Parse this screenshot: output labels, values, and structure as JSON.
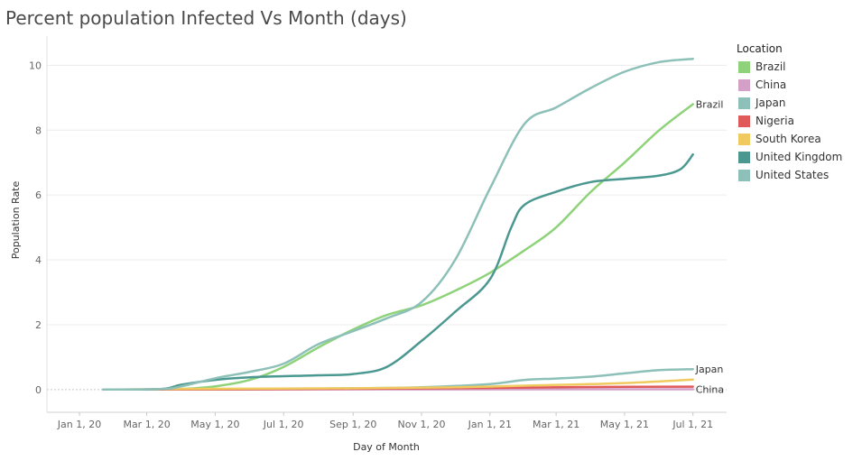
{
  "title": "Percent population Infected Vs Month (days)",
  "chart_data": {
    "type": "line",
    "title": "Percent population Infected Vs Month (days)",
    "xlabel": "Day of Month",
    "ylabel": "Population Rate",
    "x_tick_labels": [
      "Jan 1, 20",
      "Mar 1, 20",
      "May 1, 20",
      "Jul 1, 20",
      "Sep 1, 20",
      "Nov 1, 20",
      "Jan 1, 21",
      "Mar 1, 21",
      "May 1, 21",
      "Jul 1, 21"
    ],
    "x_ticks": [
      "2020-01-01",
      "2020-03-01",
      "2020-05-01",
      "2020-07-01",
      "2020-09-01",
      "2020-11-01",
      "2021-01-01",
      "2021-03-01",
      "2021-05-01",
      "2021-07-01"
    ],
    "xlim": [
      "2019-12-03",
      "2021-07-31"
    ],
    "y_ticks": [
      0,
      2,
      4,
      6,
      8,
      10
    ],
    "ylim": [
      -0.7,
      10.9
    ],
    "grid": "horizontal",
    "legend_position": "right",
    "legend_title": "Location",
    "series": [
      {
        "name": "Brazil",
        "color": "#8ed27a",
        "end_label": "Brazil",
        "points": [
          [
            "2020-02-26",
            0
          ],
          [
            "2020-04-01",
            0.02
          ],
          [
            "2020-05-01",
            0.1
          ],
          [
            "2020-06-01",
            0.3
          ],
          [
            "2020-07-01",
            0.7
          ],
          [
            "2020-08-01",
            1.3
          ],
          [
            "2020-09-01",
            1.85
          ],
          [
            "2020-10-01",
            2.3
          ],
          [
            "2020-11-01",
            2.6
          ],
          [
            "2020-12-01",
            3.05
          ],
          [
            "2021-01-01",
            3.6
          ],
          [
            "2021-02-01",
            4.3
          ],
          [
            "2021-03-01",
            5.0
          ],
          [
            "2021-04-01",
            6.1
          ],
          [
            "2021-05-01",
            7.0
          ],
          [
            "2021-06-01",
            8.0
          ],
          [
            "2021-07-01",
            8.8
          ]
        ]
      },
      {
        "name": "China",
        "color": "#d4a0c8",
        "end_label": "China",
        "points": [
          [
            "2020-01-22",
            0
          ],
          [
            "2021-07-01",
            0.01
          ]
        ]
      },
      {
        "name": "Japan",
        "color": "#8dc0b8",
        "end_label": "Japan",
        "points": [
          [
            "2020-01-22",
            0
          ],
          [
            "2020-06-01",
            0.01
          ],
          [
            "2020-09-01",
            0.04
          ],
          [
            "2020-11-01",
            0.07
          ],
          [
            "2021-01-01",
            0.17
          ],
          [
            "2021-02-01",
            0.3
          ],
          [
            "2021-03-01",
            0.34
          ],
          [
            "2021-04-01",
            0.4
          ],
          [
            "2021-05-01",
            0.5
          ],
          [
            "2021-06-01",
            0.6
          ],
          [
            "2021-07-01",
            0.63
          ]
        ]
      },
      {
        "name": "Nigeria",
        "color": "#e05a5a",
        "end_label": "",
        "points": [
          [
            "2020-02-28",
            0
          ],
          [
            "2020-06-01",
            0.01
          ],
          [
            "2020-10-01",
            0.03
          ],
          [
            "2021-01-01",
            0.05
          ],
          [
            "2021-04-01",
            0.08
          ],
          [
            "2021-07-01",
            0.09
          ]
        ]
      },
      {
        "name": "South Korea",
        "color": "#f0c95f",
        "end_label": "",
        "points": [
          [
            "2020-01-22",
            0
          ],
          [
            "2020-04-01",
            0.02
          ],
          [
            "2020-09-01",
            0.04
          ],
          [
            "2020-12-01",
            0.07
          ],
          [
            "2021-02-01",
            0.12
          ],
          [
            "2021-05-01",
            0.2
          ],
          [
            "2021-07-01",
            0.31
          ]
        ]
      },
      {
        "name": "United Kingdom",
        "color": "#4b9891",
        "end_label": "",
        "points": [
          [
            "2020-02-01",
            0
          ],
          [
            "2020-03-15",
            0.02
          ],
          [
            "2020-04-01",
            0.15
          ],
          [
            "2020-05-01",
            0.3
          ],
          [
            "2020-06-01",
            0.38
          ],
          [
            "2020-08-01",
            0.44
          ],
          [
            "2020-09-01",
            0.48
          ],
          [
            "2020-10-01",
            0.7
          ],
          [
            "2020-11-01",
            1.5
          ],
          [
            "2020-12-01",
            2.4
          ],
          [
            "2021-01-01",
            3.4
          ],
          [
            "2021-01-20",
            5.0
          ],
          [
            "2021-02-01",
            5.7
          ],
          [
            "2021-03-01",
            6.1
          ],
          [
            "2021-04-01",
            6.4
          ],
          [
            "2021-05-01",
            6.5
          ],
          [
            "2021-06-01",
            6.6
          ],
          [
            "2021-06-20",
            6.8
          ],
          [
            "2021-07-01",
            7.25
          ]
        ]
      },
      {
        "name": "United States",
        "color": "#8dc0b8",
        "end_label": "",
        "points": [
          [
            "2020-01-22",
            0
          ],
          [
            "2020-03-15",
            0.02
          ],
          [
            "2020-04-01",
            0.1
          ],
          [
            "2020-05-01",
            0.35
          ],
          [
            "2020-06-01",
            0.55
          ],
          [
            "2020-07-01",
            0.8
          ],
          [
            "2020-08-01",
            1.4
          ],
          [
            "2020-09-01",
            1.8
          ],
          [
            "2020-10-01",
            2.2
          ],
          [
            "2020-11-01",
            2.7
          ],
          [
            "2020-12-01",
            4.0
          ],
          [
            "2021-01-01",
            6.2
          ],
          [
            "2021-02-01",
            8.2
          ],
          [
            "2021-03-01",
            8.7
          ],
          [
            "2021-04-01",
            9.3
          ],
          [
            "2021-05-01",
            9.8
          ],
          [
            "2021-06-01",
            10.1
          ],
          [
            "2021-07-01",
            10.2
          ]
        ]
      }
    ]
  }
}
